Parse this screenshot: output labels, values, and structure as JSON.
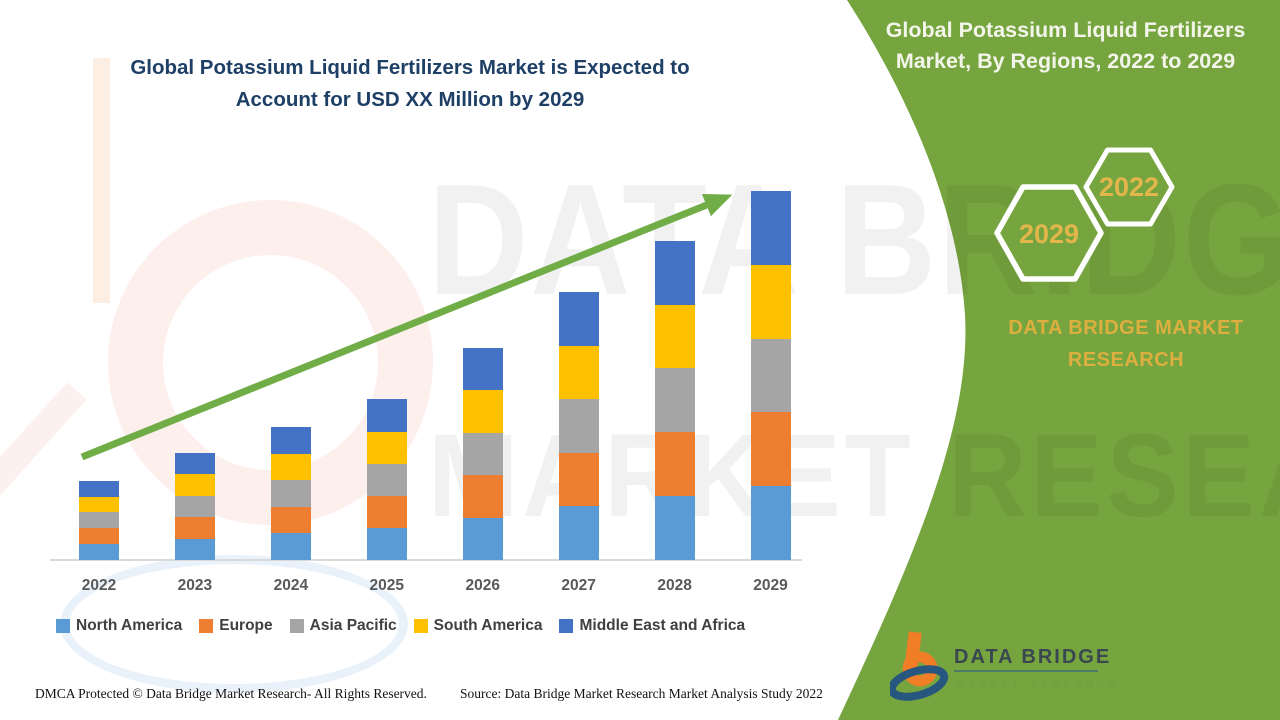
{
  "main": {
    "title_line1": "Global Potassium Liquid Fertilizers Market is Expected to",
    "title_line2": "Account for USD XX Million by 2029"
  },
  "panel": {
    "title_line1": "Global Potassium Liquid Fertilizers",
    "title_line2": "Market, By Regions, 2022 to 2029",
    "hexagon_back_label": "2022",
    "hexagon_front_label": "2029",
    "brand_line1": "DATA BRIDGE MARKET",
    "brand_line2": "RESEARCH",
    "panel_green": "#76A53F",
    "gold": "#DCAF3E"
  },
  "logo": {
    "name": "DATA BRIDGE",
    "subtitle": "MARKET RESEARCH"
  },
  "watermark": {
    "line1": "DATA BRIDGE",
    "line2": "MARKET RESEARCH"
  },
  "footer": {
    "left": "DMCA Protected © Data Bridge Market Research- All Rights Reserved.",
    "right": "Source: Data Bridge Market Research Market Analysis Study 2022"
  },
  "chart_data": {
    "type": "bar",
    "stacked": true,
    "title": "Global Potassium Liquid Fertilizers Market is Expected to Account for USD XX Million by 2029",
    "xlabel": "",
    "ylabel": "",
    "value_axis_visible": false,
    "units": "relative units (2029 total = 100); actual USD values masked as XX in source",
    "categories": [
      "2022",
      "2023",
      "2024",
      "2025",
      "2026",
      "2027",
      "2028",
      "2029"
    ],
    "series": [
      {
        "name": "North America",
        "color": "#5B9BD5",
        "values": [
          4.3,
          5.8,
          7.2,
          8.7,
          11.5,
          14.5,
          17.3,
          20.0
        ]
      },
      {
        "name": "Europe",
        "color": "#ED7D31",
        "values": [
          4.3,
          5.8,
          7.2,
          8.7,
          11.5,
          14.5,
          17.3,
          20.0
        ]
      },
      {
        "name": "Asia Pacific",
        "color": "#A5A5A5",
        "values": [
          4.3,
          5.8,
          7.2,
          8.7,
          11.5,
          14.5,
          17.3,
          20.0
        ]
      },
      {
        "name": "South America",
        "color": "#FFC000",
        "values": [
          4.3,
          5.8,
          7.2,
          8.7,
          11.5,
          14.5,
          17.3,
          20.0
        ]
      },
      {
        "name": "Middle East and Africa",
        "color": "#4472C4",
        "values": [
          4.3,
          5.8,
          7.2,
          8.7,
          11.5,
          14.5,
          17.3,
          20.0
        ]
      }
    ],
    "bar_totals": [
      21.5,
      29.0,
      36.0,
      43.5,
      57.5,
      72.5,
      86.5,
      100.0
    ],
    "trend_arrow": {
      "present": true,
      "color": "#70AD47",
      "direction": "up-right"
    },
    "legend_position": "bottom",
    "grid": false
  }
}
